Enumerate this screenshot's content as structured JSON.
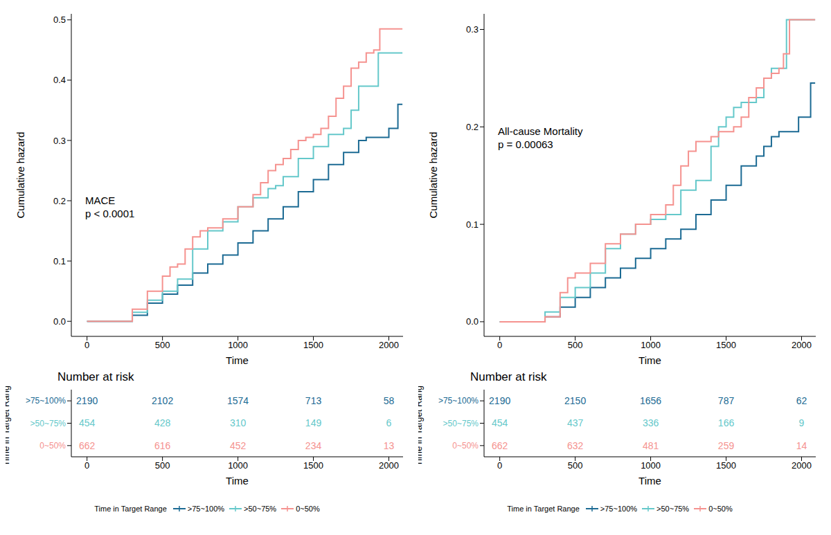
{
  "chart_data": [
    {
      "type": "line",
      "line_style": "step",
      "annotations": [
        "MACE",
        "p < 0.0001"
      ],
      "x_label": "Time",
      "y_label": "Cumulative hazard",
      "xlim": [
        -104,
        2094
      ],
      "xticks": [
        0,
        500,
        1000,
        1500,
        2000
      ],
      "ylim": [
        -0.025,
        0.51
      ],
      "yticks": [
        {
          "value": 0,
          "label": "0.0"
        },
        0.1,
        0.2,
        0.3,
        0.4,
        0.5
      ],
      "legend": "bottom",
      "legend_title": "Time in Target Range",
      "series": [
        {
          "name": ">75~100%",
          "color": "#1b6a93",
          "x": [
            0,
            260,
            300,
            400,
            500,
            600,
            700,
            800,
            900,
            1000,
            1100,
            1200,
            1300,
            1400,
            1500,
            1600,
            1700,
            1800,
            1850,
            1950,
            2000,
            2060,
            2090
          ],
          "values": [
            0,
            0,
            0.01,
            0.03,
            0.045,
            0.06,
            0.08,
            0.095,
            0.11,
            0.13,
            0.15,
            0.17,
            0.19,
            0.215,
            0.235,
            0.26,
            0.28,
            0.3,
            0.305,
            0.305,
            0.32,
            0.36,
            0.36
          ]
        },
        {
          "name": ">50~75%",
          "color": "#64c8ca",
          "x": [
            0,
            260,
            300,
            400,
            500,
            600,
            700,
            800,
            900,
            1000,
            1100,
            1200,
            1250,
            1300,
            1400,
            1500,
            1600,
            1700,
            1750,
            1800,
            1900,
            1930,
            2090
          ],
          "values": [
            0,
            0,
            0.015,
            0.035,
            0.05,
            0.07,
            0.12,
            0.15,
            0.165,
            0.19,
            0.205,
            0.22,
            0.225,
            0.24,
            0.27,
            0.29,
            0.31,
            0.32,
            0.35,
            0.39,
            0.39,
            0.445,
            0.445
          ]
        },
        {
          "name": "0~50%",
          "color": "#f5928f",
          "x": [
            0,
            250,
            300,
            400,
            500,
            550,
            600,
            650,
            700,
            750,
            800,
            900,
            1000,
            1100,
            1150,
            1200,
            1250,
            1300,
            1350,
            1400,
            1450,
            1500,
            1550,
            1600,
            1650,
            1700,
            1750,
            1800,
            1850,
            1900,
            1940,
            2090
          ],
          "values": [
            0,
            0,
            0.02,
            0.05,
            0.075,
            0.09,
            0.095,
            0.12,
            0.14,
            0.15,
            0.155,
            0.17,
            0.19,
            0.21,
            0.23,
            0.25,
            0.26,
            0.27,
            0.285,
            0.3,
            0.305,
            0.31,
            0.32,
            0.34,
            0.37,
            0.39,
            0.42,
            0.43,
            0.445,
            0.45,
            0.485,
            0.485
          ]
        }
      ],
      "risk_table": {
        "title": "Number at risk",
        "x_label": "Time",
        "y_label": "Time in Target Range",
        "times": [
          0,
          500,
          1000,
          1500,
          2000
        ],
        "rows": [
          {
            "name": ">75~100%",
            "color": "#1b6a93",
            "values": [
              2190,
              2102,
              1574,
              713,
              58
            ]
          },
          {
            "name": ">50~75%",
            "color": "#64c8ca",
            "values": [
              454,
              428,
              310,
              149,
              6
            ]
          },
          {
            "name": "0~50%",
            "color": "#f5928f",
            "values": [
              662,
              616,
              452,
              234,
              13
            ]
          }
        ]
      }
    },
    {
      "type": "line",
      "line_style": "step",
      "annotations": [
        "All-cause Mortality",
        "p = 0.00063"
      ],
      "x_label": "Time",
      "y_label": "Cumulative hazard",
      "xlim": [
        -104,
        2094
      ],
      "xticks": [
        0,
        500,
        1000,
        1500,
        2000
      ],
      "ylim": [
        -0.015,
        0.316
      ],
      "yticks": [
        {
          "value": 0,
          "label": "0.0"
        },
        0.1,
        0.2,
        0.3
      ],
      "legend": "bottom",
      "legend_title": "Time in Target Range",
      "series": [
        {
          "name": ">75~100%",
          "color": "#1b6a93",
          "x": [
            0,
            260,
            300,
            400,
            500,
            600,
            700,
            800,
            900,
            1000,
            1100,
            1200,
            1300,
            1400,
            1500,
            1600,
            1700,
            1750,
            1800,
            1850,
            1950,
            1980,
            2060,
            2090
          ],
          "values": [
            0,
            0,
            0.005,
            0.015,
            0.025,
            0.035,
            0.045,
            0.055,
            0.065,
            0.075,
            0.085,
            0.095,
            0.11,
            0.125,
            0.14,
            0.16,
            0.17,
            0.18,
            0.19,
            0.195,
            0.195,
            0.21,
            0.245,
            0.245
          ]
        },
        {
          "name": ">50~75%",
          "color": "#64c8ca",
          "x": [
            0,
            260,
            300,
            400,
            500,
            600,
            700,
            800,
            900,
            1000,
            1100,
            1200,
            1300,
            1400,
            1450,
            1500,
            1550,
            1600,
            1700,
            1750,
            1800,
            1880,
            1900,
            2090
          ],
          "values": [
            0,
            0,
            0.01,
            0.025,
            0.035,
            0.05,
            0.075,
            0.09,
            0.1,
            0.105,
            0.11,
            0.135,
            0.145,
            0.18,
            0.2,
            0.21,
            0.22,
            0.225,
            0.23,
            0.25,
            0.26,
            0.26,
            0.31,
            0.31
          ]
        },
        {
          "name": "0~50%",
          "color": "#f5928f",
          "x": [
            0,
            260,
            300,
            400,
            450,
            500,
            600,
            700,
            800,
            900,
            1000,
            1100,
            1150,
            1200,
            1250,
            1300,
            1400,
            1450,
            1500,
            1550,
            1600,
            1650,
            1700,
            1750,
            1800,
            1850,
            1880,
            1920,
            2090
          ],
          "values": [
            0,
            0,
            0.005,
            0.03,
            0.045,
            0.05,
            0.06,
            0.08,
            0.09,
            0.1,
            0.11,
            0.12,
            0.14,
            0.16,
            0.175,
            0.185,
            0.19,
            0.195,
            0.195,
            0.2,
            0.21,
            0.23,
            0.24,
            0.25,
            0.255,
            0.26,
            0.275,
            0.31,
            0.31
          ]
        }
      ],
      "risk_table": {
        "title": "Number at risk",
        "x_label": "Time",
        "y_label": "Time in Target Range",
        "times": [
          0,
          500,
          1000,
          1500,
          2000
        ],
        "rows": [
          {
            "name": ">75~100%",
            "color": "#1b6a93",
            "values": [
              2190,
              2150,
              1656,
              787,
              62
            ]
          },
          {
            "name": ">50~75%",
            "color": "#64c8ca",
            "values": [
              454,
              437,
              336,
              166,
              9
            ]
          },
          {
            "name": "0~50%",
            "color": "#f5928f",
            "values": [
              662,
              632,
              481,
              259,
              14
            ]
          }
        ]
      }
    }
  ]
}
